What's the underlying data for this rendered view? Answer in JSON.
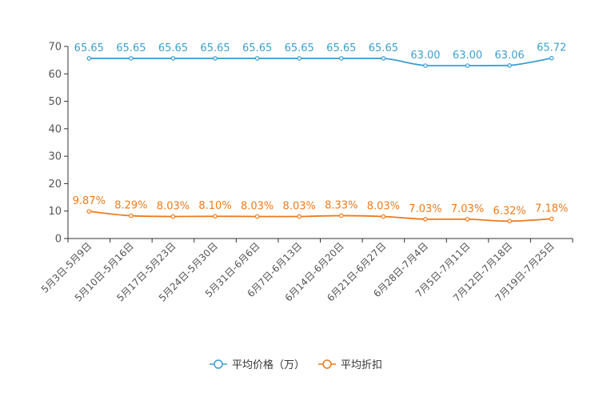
{
  "chart_data": {
    "type": "line",
    "categories": [
      "5月3日-5月9日",
      "5月10日-5月16日",
      "5月17日-5月23日",
      "5月24日-5月30日",
      "5月31日-6月6日",
      "6月7日-6月13日",
      "6月14日-6月20日",
      "6月21日-6月27日",
      "6月28日-7月4日",
      "7月5日-7月11日",
      "7月12日-7月18日",
      "7月19日-7月25日"
    ],
    "ylim": [
      0,
      70
    ],
    "yticks": [
      0,
      10,
      20,
      30,
      40,
      50,
      60,
      70
    ],
    "series": [
      {
        "name": "平均价格（万）",
        "color": "#3d9fd0",
        "values": [
          65.65,
          65.65,
          65.65,
          65.65,
          65.65,
          65.65,
          65.65,
          65.65,
          63.0,
          63.0,
          63.06,
          65.72
        ],
        "labels": [
          "65.65",
          "65.65",
          "65.65",
          "65.65",
          "65.65",
          "65.65",
          "65.65",
          "65.65",
          "63.00",
          "63.00",
          "63.06",
          "65.72"
        ]
      },
      {
        "name": "平均折扣",
        "color": "#f07a1a",
        "values": [
          9.87,
          8.29,
          8.03,
          8.1,
          8.03,
          8.03,
          8.33,
          8.03,
          7.03,
          7.03,
          6.32,
          7.18
        ],
        "labels": [
          "9.87%",
          "8.29%",
          "8.03%",
          "8.10%",
          "8.03%",
          "8.03%",
          "8.33%",
          "8.03%",
          "7.03%",
          "7.03%",
          "6.32%",
          "7.18%"
        ]
      }
    ],
    "grid": false,
    "legend_position": "bottom"
  }
}
